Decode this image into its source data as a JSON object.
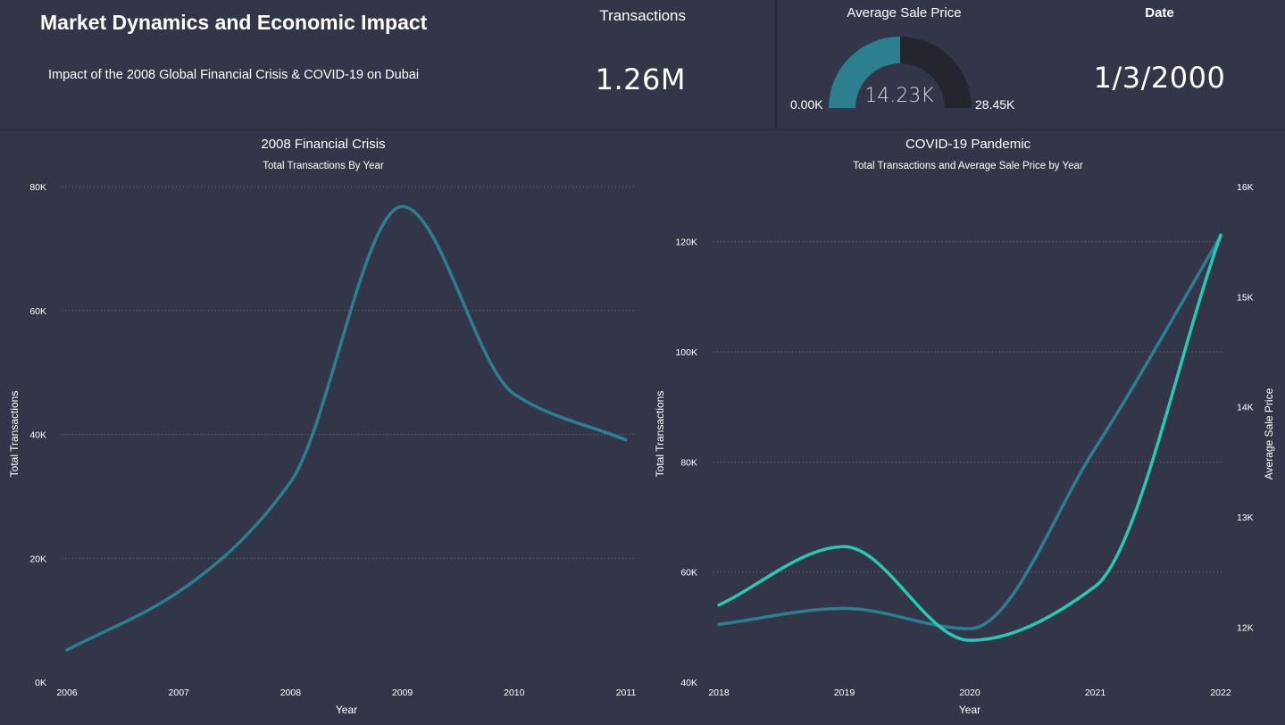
{
  "header": {
    "title": "Market Dynamics and Economic Impact",
    "subtitle": "Impact of the 2008 Global Financial Crisis & COVID-19 on Dubai"
  },
  "kpis": {
    "transactions": {
      "label": "Transactions",
      "value": "1.26M"
    },
    "avg_sale_price": {
      "label": "Average Sale Price",
      "value": "14.23K",
      "min": "0.00K",
      "max": "28.45K",
      "fill_fraction": 0.5,
      "fill_color": "#2b7f8f",
      "track_color": "#24252f"
    },
    "date": {
      "label": "Date",
      "value": "1/3/2000"
    }
  },
  "colors": {
    "background": "#333548",
    "series_primary": "#2b7f8f",
    "series_secondary": "#27c9b5"
  },
  "chart_data": [
    {
      "id": "financial",
      "type": "line",
      "title": "2008 Financial Crisis",
      "subtitle": "Total Transactions By Year",
      "xlabel": "Year",
      "ylabel": "Total Transactions",
      "categories": [
        "2006",
        "2007",
        "2008",
        "2009",
        "2010",
        "2011"
      ],
      "ylim": [
        0,
        80000
      ],
      "yticks": [
        {
          "value": 0,
          "label": "0K"
        },
        {
          "value": 20000,
          "label": "20K"
        },
        {
          "value": 40000,
          "label": "40K"
        },
        {
          "value": 60000,
          "label": "60K"
        },
        {
          "value": 80000,
          "label": "80K"
        }
      ],
      "grid": true,
      "series": [
        {
          "name": "Total Transactions",
          "values": [
            5200,
            14600,
            32300,
            76800,
            46500,
            39100
          ],
          "color": "#2b7f8f"
        }
      ]
    },
    {
      "id": "covid",
      "type": "line",
      "title": "COVID-19 Pandemic",
      "subtitle": "Total Transactions and Average Sale Price by Year",
      "xlabel": "Year",
      "ylabel": "Total Transactions",
      "y2label": "Average Sale Price",
      "categories": [
        "2018",
        "2019",
        "2020",
        "2021",
        "2022"
      ],
      "ylim": [
        40000,
        130000
      ],
      "yticks": [
        {
          "value": 40000,
          "label": "40K"
        },
        {
          "value": 60000,
          "label": "60K"
        },
        {
          "value": 80000,
          "label": "80K"
        },
        {
          "value": 100000,
          "label": "100K"
        },
        {
          "value": 120000,
          "label": "120K"
        }
      ],
      "y2lim": [
        11500,
        16000
      ],
      "y2ticks": [
        {
          "value": 12000,
          "label": "12K"
        },
        {
          "value": 13000,
          "label": "13K"
        },
        {
          "value": 14000,
          "label": "14K"
        },
        {
          "value": 15000,
          "label": "15K"
        },
        {
          "value": 16000,
          "label": "16K"
        }
      ],
      "grid": true,
      "series": [
        {
          "name": "Total Transactions",
          "axis": "left",
          "values": [
            50500,
            53400,
            49700,
            82500,
            121000
          ],
          "color": "#2b7f8f"
        },
        {
          "name": "Average Sale Price",
          "axis": "right",
          "values": [
            12200,
            12730,
            11880,
            12370,
            15560
          ],
          "color": "#27c9b5"
        }
      ]
    }
  ]
}
